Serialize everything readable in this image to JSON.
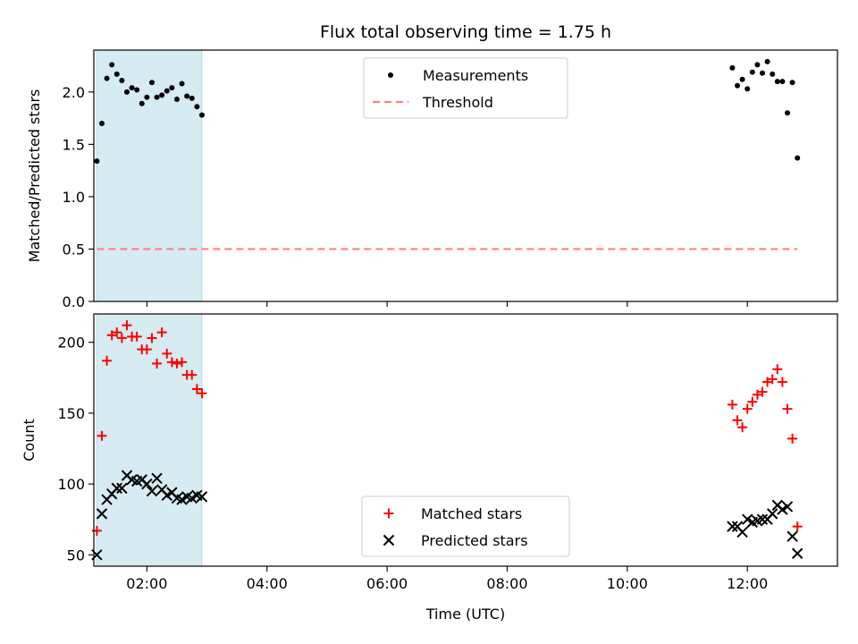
{
  "chart_data": [
    {
      "type": "scatter",
      "title": "Flux total observing time = 1.75 h",
      "xlabel": "",
      "ylabel": "Matched/Predicted stars",
      "xlim": [
        "01:07",
        "13:30"
      ],
      "ylim": [
        0,
        2.4
      ],
      "yticks": [
        0.0,
        0.5,
        1.0,
        1.5,
        2.0
      ],
      "ytick_labels": [
        "0.0",
        "0.5",
        "1.0",
        "1.5",
        "2.0"
      ],
      "shaded_interval": {
        "x": [
          "01:10",
          "02:55"
        ],
        "color": "#add8e6"
      },
      "legend": {
        "placement": "upper center"
      },
      "series": [
        {
          "name": "Measurements",
          "kind": "scatter",
          "marker": "point",
          "color": "#000000",
          "x": [
            "01:10",
            "01:15",
            "01:20",
            "01:25",
            "01:30",
            "01:35",
            "01:40",
            "01:45",
            "01:50",
            "01:55",
            "02:00",
            "02:05",
            "02:10",
            "02:15",
            "02:20",
            "02:25",
            "02:30",
            "02:35",
            "02:40",
            "02:45",
            "02:50",
            "02:55",
            "11:45",
            "11:50",
            "11:55",
            "12:00",
            "12:05",
            "12:10",
            "12:15",
            "12:20",
            "12:25",
            "12:30",
            "12:35",
            "12:40",
            "12:45",
            "12:50"
          ],
          "y": [
            1.34,
            1.7,
            2.13,
            2.26,
            2.17,
            2.11,
            2.0,
            2.04,
            2.02,
            1.89,
            1.95,
            2.09,
            1.95,
            1.97,
            2.01,
            2.04,
            1.93,
            2.08,
            1.96,
            1.94,
            1.86,
            1.78,
            2.23,
            2.06,
            2.12,
            2.03,
            2.19,
            2.26,
            2.18,
            2.29,
            2.17,
            2.1,
            2.1,
            1.8,
            2.09,
            1.37
          ]
        },
        {
          "name": "Threshold",
          "kind": "dashed-line",
          "color": "#ff8080",
          "x": [
            "01:10",
            "12:50"
          ],
          "y": [
            0.5,
            0.5
          ]
        }
      ]
    },
    {
      "type": "scatter",
      "title": "",
      "xlabel": "Time (UTC)",
      "ylabel": "Count",
      "xlim": [
        "01:07",
        "13:30"
      ],
      "ylim": [
        42,
        220
      ],
      "yticks": [
        50,
        100,
        150,
        200
      ],
      "ytick_labels": [
        "50",
        "100",
        "150",
        "200"
      ],
      "xticks": [
        "02:00",
        "04:00",
        "06:00",
        "08:00",
        "10:00",
        "12:00"
      ],
      "xtick_labels": [
        "02:00",
        "04:00",
        "06:00",
        "08:00",
        "10:00",
        "12:00"
      ],
      "shaded_interval": {
        "x": [
          "01:10",
          "02:55"
        ],
        "color": "#add8e6"
      },
      "legend": {
        "placement": "lower center"
      },
      "series": [
        {
          "name": "Matched stars",
          "marker": "plus",
          "color": "#ff0000",
          "x": [
            "01:10",
            "01:15",
            "01:20",
            "01:25",
            "01:30",
            "01:35",
            "01:40",
            "01:45",
            "01:50",
            "01:55",
            "02:00",
            "02:05",
            "02:10",
            "02:15",
            "02:20",
            "02:25",
            "02:30",
            "02:35",
            "02:40",
            "02:45",
            "02:50",
            "02:55",
            "11:45",
            "11:50",
            "11:55",
            "12:00",
            "12:05",
            "12:10",
            "12:15",
            "12:20",
            "12:25",
            "12:30",
            "12:35",
            "12:40",
            "12:45",
            "12:50"
          ],
          "y": [
            67,
            134,
            187,
            205,
            207,
            203,
            212,
            204,
            204,
            195,
            195,
            203,
            185,
            207,
            192,
            186,
            185,
            186,
            177,
            177,
            167,
            164,
            156,
            145,
            140,
            153,
            158,
            163,
            165,
            172,
            174,
            181,
            172,
            153,
            132,
            70
          ]
        },
        {
          "name": "Predicted stars",
          "marker": "x",
          "color": "#000000",
          "x": [
            "01:10",
            "01:15",
            "01:20",
            "01:25",
            "01:30",
            "01:35",
            "01:40",
            "01:45",
            "01:50",
            "01:55",
            "02:00",
            "02:05",
            "02:10",
            "02:15",
            "02:20",
            "02:25",
            "02:30",
            "02:35",
            "02:40",
            "02:45",
            "02:50",
            "02:55",
            "11:45",
            "11:50",
            "11:55",
            "12:00",
            "12:05",
            "12:10",
            "12:15",
            "12:20",
            "12:25",
            "12:30",
            "12:35",
            "12:40",
            "12:45",
            "12:50"
          ],
          "y": [
            50,
            79,
            89,
            93,
            97,
            97,
            106,
            103,
            102,
            103,
            100,
            95,
            104,
            96,
            92,
            94,
            90,
            89,
            91,
            90,
            92,
            91,
            70,
            70,
            66,
            75,
            73,
            74,
            75,
            75,
            79,
            85,
            82,
            84,
            63,
            51
          ]
        }
      ]
    }
  ]
}
